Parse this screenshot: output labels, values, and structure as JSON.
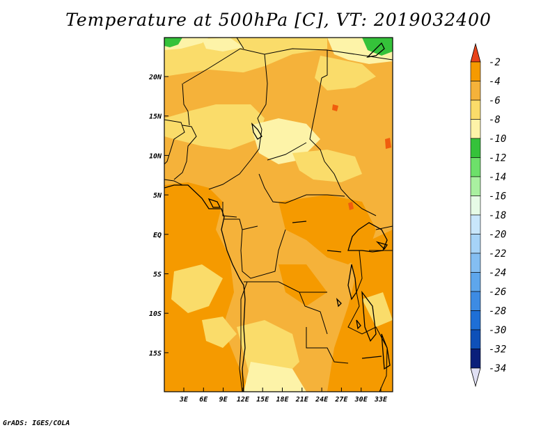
{
  "title": "Temperature at 500hPa [C], VT: 2019032400",
  "credit": "GrADS: IGES/COLA",
  "map": {
    "lat_labels": [
      "20N",
      "15N",
      "10N",
      "5N",
      "EQ",
      "5S",
      "10S",
      "15S"
    ],
    "lon_labels": [
      "3E",
      "6E",
      "9E",
      "12E",
      "15E",
      "18E",
      "21E",
      "24E",
      "27E",
      "30E",
      "33E"
    ]
  },
  "colorbar": {
    "levels": [
      "-2",
      "-4",
      "-6",
      "-8",
      "-10",
      "-12",
      "-14",
      "-16",
      "-18",
      "-20",
      "-22",
      "-24",
      "-26",
      "-28",
      "-30",
      "-32",
      "-34"
    ],
    "colors": [
      "#f05d0d",
      "#f59a00",
      "#f5b23a",
      "#fadc6a",
      "#fdf3a8",
      "#35c23a",
      "#6de06a",
      "#a9f0a0",
      "#e6fbe6",
      "#c8e6fb",
      "#a6d3f7",
      "#84bef2",
      "#5ea6ec",
      "#3d8be3",
      "#1e6fd6",
      "#0e50b8",
      "#0a1f7a"
    ],
    "top_color": "#e8431a",
    "bottom_color": "#e0e0f4"
  }
}
